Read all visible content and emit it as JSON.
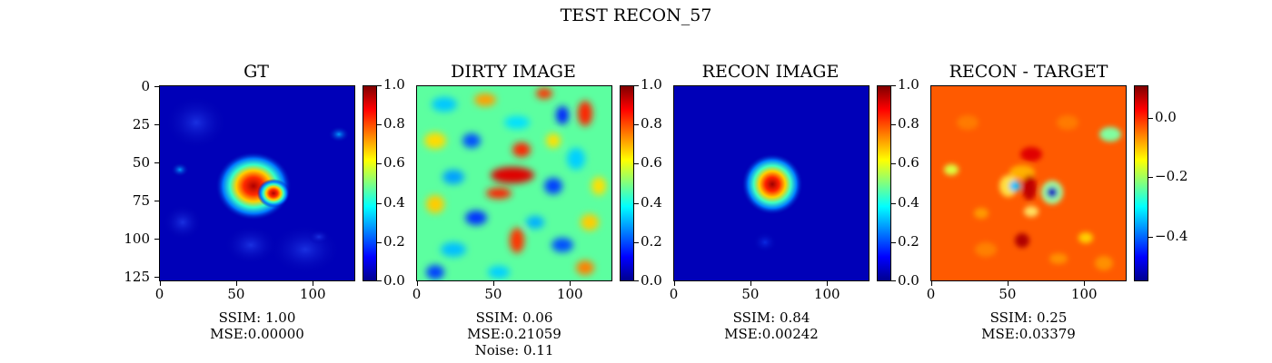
{
  "suptitle": "TEST RECON_57",
  "panels": [
    {
      "title": "GT",
      "caption": [
        "SSIM: 1.00",
        "MSE:0.00000"
      ],
      "colorbar_ticks": [
        "0.0",
        "0.2",
        "0.4",
        "0.6",
        "0.8",
        "1.0"
      ]
    },
    {
      "title": "DIRTY IMAGE",
      "caption": [
        "SSIM: 0.06",
        "MSE:0.21059",
        "Noise: 0.11"
      ],
      "colorbar_ticks": [
        "0.0",
        "0.2",
        "0.4",
        "0.6",
        "0.8",
        "1.0"
      ]
    },
    {
      "title": "RECON IMAGE",
      "caption": [
        "SSIM: 0.84",
        "MSE:0.00242"
      ],
      "colorbar_ticks": [
        "0.0",
        "0.2",
        "0.4",
        "0.6",
        "0.8",
        "1.0"
      ]
    },
    {
      "title": "RECON - TARGET",
      "caption": [
        "SSIM: 0.25",
        "MSE:0.03379"
      ],
      "colorbar_ticks": [
        "−0.4",
        "−0.2",
        "0.0"
      ]
    }
  ],
  "x_ticks": [
    "0",
    "50",
    "100"
  ],
  "y_ticks": [
    "0",
    "25",
    "50",
    "75",
    "100",
    "125"
  ],
  "colormap": "jet"
}
